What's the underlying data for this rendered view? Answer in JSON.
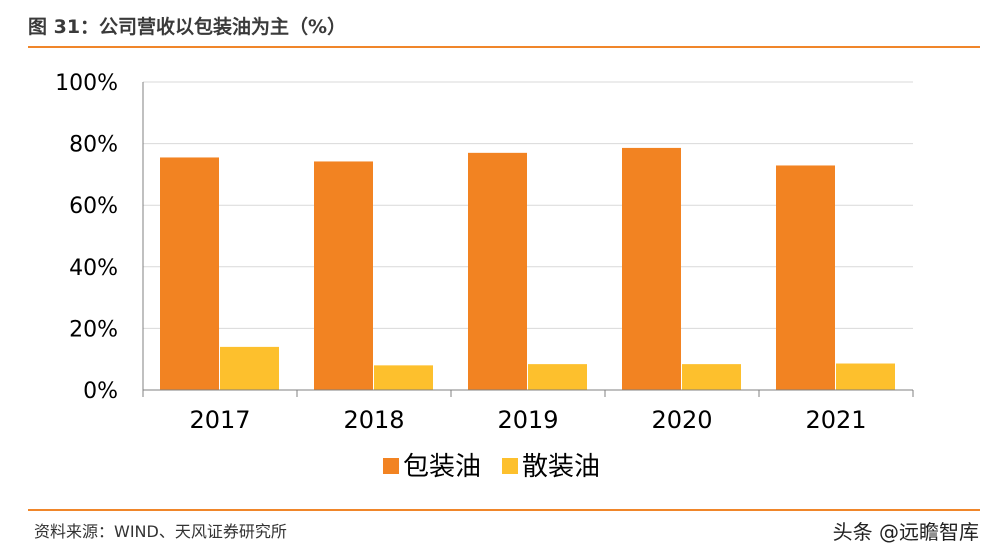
{
  "header": {
    "title": "图 31：公司营收以包装油为主（%）"
  },
  "footer": {
    "source": "资料来源：WIND、天风证券研究所",
    "watermark": "头条 @远瞻智库"
  },
  "colors": {
    "accent": "#f0862a",
    "series1": "#f28322",
    "series2": "#fdc02d",
    "grid": "#d9d9d9",
    "axis": "#808080"
  },
  "chart_data": {
    "type": "bar",
    "title": "",
    "xlabel": "",
    "ylabel": "",
    "categories": [
      "2017",
      "2018",
      "2019",
      "2020",
      "2021"
    ],
    "series": [
      {
        "name": "包装油",
        "values": [
          75.5,
          74.2,
          77,
          78.6,
          72.9
        ]
      },
      {
        "name": "散装油",
        "values": [
          14,
          8,
          8.4,
          8.4,
          8.6
        ]
      }
    ],
    "ylim": [
      0,
      100
    ],
    "yticks": [
      "0%",
      "20%",
      "40%",
      "60%",
      "80%",
      "100%"
    ],
    "grid": true,
    "legend": "bottom"
  }
}
